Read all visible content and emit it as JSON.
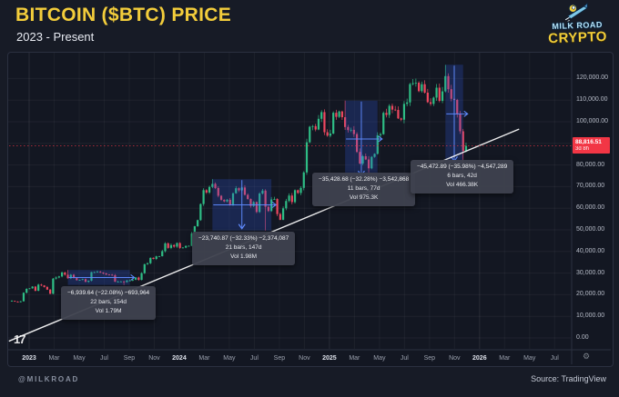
{
  "header": {
    "title": "BITCOIN ($BTC) PRICE",
    "subtitle": "2023 - Present"
  },
  "logo": {
    "line1": "MILK ROAD",
    "line2": "CRYPTO"
  },
  "footer": {
    "handle": "@MILKROAD",
    "source": "Source: TradingView"
  },
  "price_badge": {
    "price": "88,816.51",
    "countdown": "3d 8h"
  },
  "price_axis": {
    "labels": [
      {
        "text": "120,000.00",
        "value": 120000
      },
      {
        "text": "110,000.00",
        "value": 110000
      },
      {
        "text": "100,000.00",
        "value": 100000
      },
      {
        "text": "80,000.00",
        "value": 80000
      },
      {
        "text": "70,000.00",
        "value": 70000
      },
      {
        "text": "60,000.00",
        "value": 60000
      },
      {
        "text": "50,000.00",
        "value": 50000
      },
      {
        "text": "40,000.00",
        "value": 40000
      },
      {
        "text": "30,000.00",
        "value": 30000
      },
      {
        "text": "20,000.00",
        "value": 20000
      },
      {
        "text": "10,000.00",
        "value": 10000
      },
      {
        "text": "0.00",
        "value": 0
      }
    ]
  },
  "time_axis": {
    "labels": [
      {
        "text": "2023",
        "year": true
      },
      {
        "text": "Mar"
      },
      {
        "text": "May"
      },
      {
        "text": "Jul"
      },
      {
        "text": "Sep"
      },
      {
        "text": "Nov"
      },
      {
        "text": "2024",
        "year": true
      },
      {
        "text": "Mar"
      },
      {
        "text": "May"
      },
      {
        "text": "Jul"
      },
      {
        "text": "Sep"
      },
      {
        "text": "Nov"
      },
      {
        "text": "2025",
        "year": true
      },
      {
        "text": "Mar"
      },
      {
        "text": "May"
      },
      {
        "text": "Jul"
      },
      {
        "text": "Sep"
      },
      {
        "text": "Nov"
      },
      {
        "text": "2026",
        "year": true
      },
      {
        "text": "Mar"
      },
      {
        "text": "May"
      },
      {
        "text": "Jul"
      }
    ]
  },
  "chart_data": {
    "type": "candlestick",
    "title": "BITCOIN ($BTC) PRICE",
    "subtitle": "2023 - Present",
    "timeframe": "1W",
    "x_range": [
      "Dec 2022",
      "Jul 2026"
    ],
    "ylim": [
      0,
      130000
    ],
    "y_gridline_step": 10000,
    "grid": true,
    "current_price": 88816.51,
    "colors": {
      "up": "#2ebd85",
      "down": "#ef4860",
      "accent_blue": "#5f8bff",
      "price_line": "#f23645",
      "trendline": "#ffffff"
    },
    "weekly_closes": [
      17150,
      16800,
      16550,
      16950,
      20900,
      22700,
      22950,
      23750,
      21850,
      24650,
      24300,
      23550,
      22350,
      20450,
      27450,
      27950,
      28450,
      30300,
      29250,
      27600,
      29250,
      27700,
      26750,
      26850,
      27200,
      25950,
      26500,
      30450,
      30450,
      30600,
      30250,
      29850,
      29350,
      29250,
      29050,
      26000,
      26050,
      26100,
      25850,
      26550,
      26550,
      26950,
      27950,
      26850,
      29950,
      34100,
      34550,
      37050,
      36550,
      37750,
      37800,
      40150,
      43750,
      41650,
      42950,
      42250,
      43900,
      41650,
      41800,
      42550,
      42600,
      48250,
      51650,
      54500,
      61950,
      68350,
      67250,
      69850,
      71250,
      69350,
      65750,
      63900,
      63150,
      63900,
      61500,
      66900,
      69250,
      68250,
      69600,
      66200,
      64250,
      61050,
      62850,
      58250,
      66800,
      68150,
      60650,
      58700,
      64050,
      64250,
      57300,
      54650,
      59950,
      63350,
      65850,
      62850,
      68350,
      67050,
      69400,
      76550,
      90500,
      97700,
      97950,
      96400,
      101350,
      104450,
      95150,
      93550,
      94550,
      104150,
      102250,
      104750,
      102100,
      97550,
      96150,
      96250,
      94300,
      86050,
      80650,
      84050,
      82550,
      78450,
      83750,
      85150,
      93750,
      94250,
      104100,
      103150,
      107350,
      105600,
      105450,
      101550,
      100950,
      108250,
      108950,
      117400,
      117850,
      118050,
      114150,
      117350,
      113450,
      109050,
      108250,
      111150,
      115750,
      109650,
      114050,
      121100,
      115050,
      110600,
      110100,
      103500,
      95600,
      86500,
      88816
    ],
    "wick_overrides": {
      "19": {
        "high": 31430
      },
      "38": {
        "low": 24490
      },
      "68": {
        "high": 73430
      },
      "86": {
        "low": 49690
      },
      "113": {
        "high": 109754
      },
      "121": {
        "low": 74325
      },
      "147": {
        "high": 126296
      },
      "153": {
        "low": 80916
      }
    },
    "trendline": {
      "from_week": -1,
      "from_price": -1500,
      "to_week": 172,
      "to_price": 96600
    },
    "measurements": [
      {
        "from_week": 19,
        "to_week": 40,
        "price_from": 31430,
        "price_to": 24490,
        "arrows": "h",
        "change": "−6,939.64 (−22.08%) −693,964",
        "bars": "22 bars, 154d",
        "vol": "Vol 1.79M"
      },
      {
        "from_week": 68,
        "to_week": 88,
        "price_from": 73430,
        "price_to": 49689,
        "arrows": "hv",
        "change": "−23,740.87 (−32.33%) −2,374,087",
        "bars": "21 bars, 147d",
        "vol": "Vol 1.98M"
      },
      {
        "from_week": 113,
        "to_week": 124,
        "price_from": 109754,
        "price_to": 74325,
        "arrows": "hv",
        "change": "−35,428.68 (−32.28%) −3,542,868",
        "bars": "11 bars, 77d",
        "vol": "Vol 975.3K"
      },
      {
        "from_week": 147,
        "to_week": 153,
        "price_from": 126384,
        "price_to": 80911,
        "arrows": "hv",
        "change": "−45,472.89 (−35.98%) −4,547,289",
        "bars": "6 bars, 42d",
        "vol": "Vol 466.38K"
      }
    ]
  }
}
